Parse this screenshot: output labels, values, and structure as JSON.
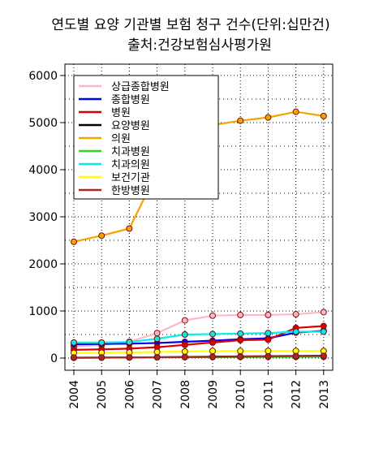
{
  "chart_data": {
    "type": "line",
    "title": "연도별 요양 기관별 보험 청구 건수(단위:십만건)",
    "subtitle": "출처:건강보험심사평가원",
    "xlabel": "",
    "ylabel": "",
    "categories": [
      "2004",
      "2005",
      "2006",
      "2007",
      "2008",
      "2009",
      "2010",
      "2011",
      "2012",
      "2013"
    ],
    "yticks": [
      "0",
      "1000",
      "2000",
      "3000",
      "4000",
      "5000",
      "6000"
    ],
    "ylim": [
      0,
      6000
    ],
    "grid": true,
    "legend_position": "top-left",
    "series": [
      {
        "name": "상급종합병원",
        "color": "#FFB6C1",
        "values": [
          245,
          275,
          345,
          530,
          800,
          900,
          915,
          915,
          930,
          975
        ]
      },
      {
        "name": "종합병원",
        "color": "#0000EE",
        "values": [
          290,
          300,
          305,
          320,
          345,
          370,
          400,
          420,
          540,
          580
        ]
      },
      {
        "name": "병원",
        "color": "#DD0000",
        "values": [
          175,
          185,
          200,
          230,
          280,
          330,
          380,
          390,
          640,
          680
        ]
      },
      {
        "name": "요양병원",
        "color": "#000000",
        "values": [
          5,
          8,
          12,
          18,
          25,
          30,
          35,
          40,
          45,
          50
        ]
      },
      {
        "name": "의원",
        "color": "#F4A300",
        "values": [
          2470,
          2600,
          2750,
          3950,
          4820,
          4950,
          5040,
          5110,
          5230,
          5140
        ]
      },
      {
        "name": "치과병원",
        "color": "#22DD22",
        "values": [
          10,
          12,
          14,
          16,
          18,
          20,
          22,
          24,
          26,
          28
        ]
      },
      {
        "name": "치과의원",
        "color": "#00EEEE",
        "values": [
          330,
          330,
          340,
          410,
          500,
          510,
          520,
          530,
          560,
          560
        ]
      },
      {
        "name": "보건기관",
        "color": "#FFFF00",
        "values": [
          110,
          115,
          120,
          130,
          140,
          150,
          150,
          150,
          150,
          150
        ]
      },
      {
        "name": "한방병원",
        "color": "#A52A2A",
        "values": [
          10,
          12,
          14,
          16,
          20,
          25,
          30,
          35,
          40,
          45
        ]
      }
    ]
  }
}
